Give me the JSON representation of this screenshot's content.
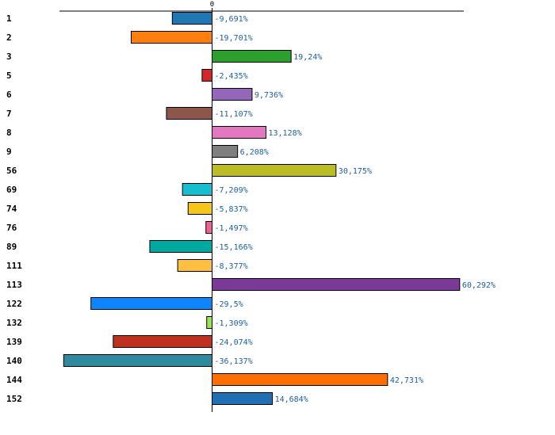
{
  "chart_data": {
    "type": "bar",
    "orientation": "horizontal",
    "categories": [
      "1",
      "2",
      "3",
      "5",
      "6",
      "7",
      "8",
      "9",
      "56",
      "69",
      "74",
      "76",
      "89",
      "111",
      "113",
      "122",
      "132",
      "139",
      "140",
      "144",
      "152"
    ],
    "values": [
      -9.691,
      -19.701,
      19.24,
      -2.435,
      9.736,
      -11.107,
      13.128,
      6.208,
      30.175,
      -7.209,
      -5.837,
      -1.497,
      -15.166,
      -8.377,
      60.292,
      -29.5,
      -1.309,
      -24.074,
      -36.137,
      42.731,
      14.684
    ],
    "value_labels": [
      "-9,691%",
      "-19,701%",
      "19,24%",
      "-2,435%",
      "9,736%",
      "-11,107%",
      "13,128%",
      "6,208%",
      "30,175%",
      "-7,209%",
      "-5,837%",
      "-1,497%",
      "-15,166%",
      "-8,377%",
      "60,292%",
      "-29,5%",
      "-1,309%",
      "-24,074%",
      "-36,137%",
      "42,731%",
      "14,684%"
    ],
    "colors": [
      "#1f77b4",
      "#ff7f0e",
      "#2ca02c",
      "#d62728",
      "#9467bd",
      "#8c564b",
      "#e377c2",
      "#7f7f7f",
      "#bcbd22",
      "#17becf",
      "#f5c518",
      "#f06292",
      "#00aaa0",
      "#ffbf40",
      "#7b3a9a",
      "#0d85ff",
      "#99e64a",
      "#c0301e",
      "#2e8b9f",
      "#ff6f00",
      "#1f6fb4"
    ],
    "ticks": [
      "0"
    ],
    "xlim": [
      -37,
      61.6
    ],
    "title": "",
    "xlabel": "",
    "ylabel": ""
  }
}
